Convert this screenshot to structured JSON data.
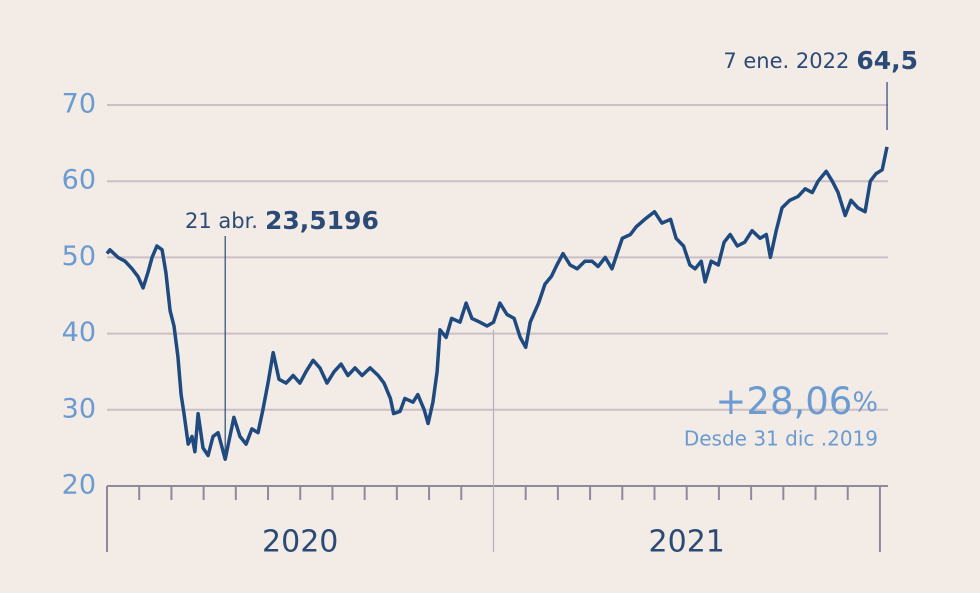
{
  "chart_data": {
    "type": "line",
    "x": [
      0,
      0.09,
      0.34,
      0.56,
      0.78,
      0.96,
      1.12,
      1.27,
      1.4,
      1.55,
      1.71,
      1.83,
      1.96,
      2.08,
      2.2,
      2.3,
      2.39,
      2.52,
      2.64,
      2.73,
      2.83,
      2.98,
      3.14,
      3.29,
      3.45,
      3.67,
      3.79,
      3.94,
      4.13,
      4.32,
      4.5,
      4.69,
      4.84,
      5.0,
      5.16,
      5.34,
      5.56,
      5.78,
      5.99,
      6.18,
      6.4,
      6.61,
      6.83,
      7.05,
      7.27,
      7.48,
      7.7,
      7.92,
      8.17,
      8.42,
      8.6,
      8.8,
      8.9,
      9.1,
      9.25,
      9.5,
      9.65,
      9.85,
      9.97,
      10.12,
      10.25,
      10.34,
      10.53,
      10.7,
      10.96,
      11.15,
      11.33,
      11.58,
      11.8,
      12.0,
      12.2,
      12.42,
      12.64,
      12.83,
      13.0,
      13.14,
      13.4,
      13.6,
      13.8,
      13.97,
      14.16,
      14.38,
      14.6,
      14.84,
      15.06,
      15.25,
      15.47,
      15.68,
      15.84,
      16.0,
      16.25,
      16.43,
      16.7,
      17.0,
      17.23,
      17.5,
      17.67,
      17.9,
      18.1,
      18.26,
      18.45,
      18.57,
      18.76,
      18.98,
      19.16,
      19.35,
      19.57,
      19.8,
      20.03,
      20.28,
      20.47,
      20.6,
      20.78,
      20.96,
      21.2,
      21.46,
      21.68,
      21.9,
      22.08,
      22.33,
      22.52,
      22.7,
      22.92,
      23.1,
      23.32,
      23.54,
      23.7,
      23.88,
      24.07,
      24.22
    ],
    "values": [
      50.5,
      51.0,
      50.0,
      49.5,
      48.5,
      47.5,
      46.0,
      48.0,
      50.0,
      51.5,
      51.0,
      48.0,
      43.0,
      41.0,
      37.0,
      32.0,
      29.5,
      25.5,
      26.5,
      24.5,
      29.5,
      25.0,
      24.0,
      26.5,
      27.0,
      23.5196,
      26.0,
      29.0,
      26.5,
      25.5,
      27.5,
      27.0,
      30.0,
      33.5,
      37.5,
      34.0,
      33.5,
      34.5,
      33.5,
      35.0,
      36.5,
      35.5,
      33.5,
      35.0,
      36.0,
      34.5,
      35.5,
      34.5,
      35.5,
      34.5,
      33.5,
      31.5,
      29.5,
      29.8,
      31.5,
      31.0,
      32.0,
      30.0,
      28.2,
      31.0,
      35.0,
      40.5,
      39.5,
      42.0,
      41.5,
      44.0,
      42.0,
      41.5,
      41.0,
      41.5,
      44.0,
      42.5,
      42.0,
      39.5,
      38.2,
      41.5,
      44.0,
      46.5,
      47.5,
      49.0,
      50.5,
      49.0,
      48.5,
      49.5,
      49.5,
      48.8,
      50.0,
      48.5,
      50.5,
      52.5,
      53.0,
      54.0,
      55.0,
      56.0,
      54.5,
      55.0,
      52.5,
      51.5,
      49.0,
      48.5,
      49.5,
      46.8,
      49.5,
      49.0,
      52.0,
      53.0,
      51.5,
      52.0,
      53.5,
      52.5,
      53.0,
      50.0,
      53.5,
      56.5,
      57.5,
      58.0,
      59.0,
      58.5,
      60.0,
      61.3,
      60.0,
      58.5,
      55.5,
      57.5,
      56.5,
      56.0,
      60.0,
      61.0,
      61.5,
      64.5
    ],
    "color": "#1f4a80",
    "xlim": [
      0,
      24.25
    ],
    "xticks": [
      0,
      1,
      2,
      3,
      4,
      5,
      6,
      7,
      8,
      9,
      10,
      11,
      12,
      13,
      14,
      15,
      16,
      17,
      18,
      19,
      20,
      21,
      22,
      23,
      24
    ],
    "x_period_labels": [
      {
        "value": 6,
        "label": "2020"
      },
      {
        "value": 18,
        "label": "2021"
      }
    ],
    "ylim": [
      20,
      70
    ],
    "yticks": [
      20,
      30,
      40,
      50,
      60,
      70
    ],
    "grid": true,
    "annotations": [
      {
        "x": 3.67,
        "date_label": "21 abr.",
        "value": 23.5196,
        "value_label": "23,5196"
      },
      {
        "x": 24.22,
        "date_label": "7 ene. 2022",
        "value": 64.5,
        "value_label": "64,5"
      }
    ],
    "change": {
      "label": "+28,06",
      "unit": "%",
      "note": "Desde 31 dic .2019"
    }
  }
}
